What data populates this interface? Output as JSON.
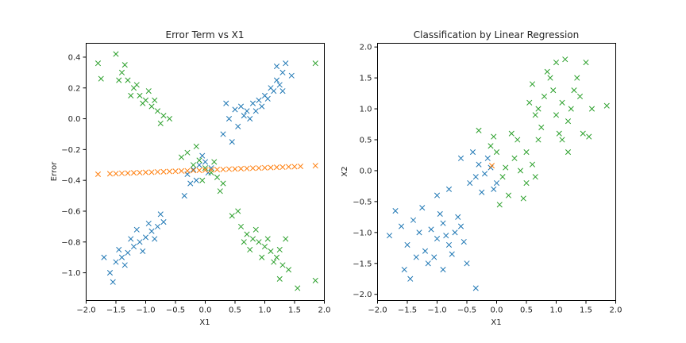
{
  "chart_data": [
    {
      "type": "scatter",
      "title": "Error Term vs X1",
      "xlabel": "X1",
      "ylabel": "Error",
      "xlim": [
        -2.0,
        2.0
      ],
      "ylim": [
        -1.18,
        0.49
      ],
      "xticks": [
        -2.0,
        -1.5,
        -1.0,
        -0.5,
        0.0,
        0.5,
        1.0,
        1.5,
        2.0
      ],
      "xtick_labels": [
        "−2.0",
        "−1.5",
        "−1.0",
        "−0.5",
        "0.0",
        "0.5",
        "1.0",
        "1.5",
        "2.0"
      ],
      "yticks": [
        -1.0,
        -0.8,
        -0.6,
        -0.4,
        -0.2,
        0.0,
        0.2,
        0.4
      ],
      "ytick_labels": [
        "−1.0",
        "−0.8",
        "−0.6",
        "−0.4",
        "−0.2",
        "0.0",
        "0.2",
        "0.4"
      ],
      "marker": "x",
      "series": [
        {
          "color": "#1f77b4",
          "points": [
            [
              -1.6,
              -1.0
            ],
            [
              -1.5,
              -0.93
            ],
            [
              -1.4,
              -0.9
            ],
            [
              -1.3,
              -0.87
            ],
            [
              -1.2,
              -0.83
            ],
            [
              -1.1,
              -0.8
            ],
            [
              -1.0,
              -0.77
            ],
            [
              -0.9,
              -0.73
            ],
            [
              -0.8,
              -0.7
            ],
            [
              -0.7,
              -0.67
            ],
            [
              -1.45,
              -0.85
            ],
            [
              -1.35,
              -0.95
            ],
            [
              -1.25,
              -0.78
            ],
            [
              -1.15,
              -0.72
            ],
            [
              -1.05,
              -0.86
            ],
            [
              -0.95,
              -0.68
            ],
            [
              -0.85,
              -0.78
            ],
            [
              -0.75,
              -0.62
            ],
            [
              -1.55,
              -1.06
            ],
            [
              -1.7,
              -0.9
            ],
            [
              -0.3,
              -0.36
            ],
            [
              -0.2,
              -0.33
            ],
            [
              -0.1,
              -0.3
            ],
            [
              0.0,
              -0.28
            ],
            [
              -0.15,
              -0.4
            ],
            [
              -0.25,
              -0.42
            ],
            [
              0.05,
              -0.35
            ],
            [
              -0.05,
              -0.24
            ],
            [
              -0.35,
              -0.5
            ],
            [
              0.1,
              -0.32
            ],
            [
              0.3,
              -0.1
            ],
            [
              0.4,
              0.0
            ],
            [
              0.5,
              0.06
            ],
            [
              0.6,
              0.08
            ],
            [
              0.7,
              0.05
            ],
            [
              0.8,
              0.1
            ],
            [
              0.9,
              0.12
            ],
            [
              1.0,
              0.15
            ],
            [
              1.1,
              0.2
            ],
            [
              1.2,
              0.25
            ],
            [
              1.3,
              0.3
            ],
            [
              0.55,
              -0.05
            ],
            [
              0.65,
              0.02
            ],
            [
              0.75,
              0.0
            ],
            [
              0.85,
              0.05
            ],
            [
              0.95,
              0.08
            ],
            [
              1.05,
              0.13
            ],
            [
              1.15,
              0.18
            ],
            [
              1.25,
              0.22
            ],
            [
              1.35,
              0.36
            ],
            [
              1.45,
              0.28
            ],
            [
              0.45,
              -0.15
            ],
            [
              0.35,
              0.1
            ],
            [
              1.3,
              0.18
            ],
            [
              1.2,
              0.34
            ]
          ]
        },
        {
          "color": "#2ca02c",
          "points": [
            [
              -1.5,
              0.42
            ],
            [
              -1.4,
              0.3
            ],
            [
              -1.3,
              0.25
            ],
            [
              -1.2,
              0.2
            ],
            [
              -1.1,
              0.15
            ],
            [
              -1.0,
              0.12
            ],
            [
              -0.9,
              0.08
            ],
            [
              -0.8,
              0.05
            ],
            [
              -0.7,
              0.02
            ],
            [
              -0.6,
              0.0
            ],
            [
              -1.45,
              0.25
            ],
            [
              -1.35,
              0.35
            ],
            [
              -1.25,
              0.15
            ],
            [
              -1.15,
              0.22
            ],
            [
              -1.05,
              0.1
            ],
            [
              -0.95,
              0.18
            ],
            [
              -0.85,
              0.12
            ],
            [
              -0.75,
              -0.03
            ],
            [
              -1.75,
              0.26
            ],
            [
              -1.8,
              0.36
            ],
            [
              -0.4,
              -0.25
            ],
            [
              -0.3,
              -0.22
            ],
            [
              -0.2,
              -0.3
            ],
            [
              -0.1,
              -0.27
            ],
            [
              0.0,
              -0.32
            ],
            [
              0.1,
              -0.35
            ],
            [
              0.2,
              -0.38
            ],
            [
              0.3,
              -0.42
            ],
            [
              -0.15,
              -0.18
            ],
            [
              -0.05,
              -0.4
            ],
            [
              0.15,
              -0.28
            ],
            [
              0.25,
              -0.47
            ],
            [
              0.6,
              -0.7
            ],
            [
              0.7,
              -0.75
            ],
            [
              0.8,
              -0.78
            ],
            [
              0.9,
              -0.8
            ],
            [
              1.0,
              -0.83
            ],
            [
              1.1,
              -0.86
            ],
            [
              1.2,
              -0.9
            ],
            [
              1.3,
              -0.95
            ],
            [
              0.65,
              -0.8
            ],
            [
              0.75,
              -0.85
            ],
            [
              0.85,
              -0.72
            ],
            [
              0.95,
              -0.9
            ],
            [
              1.05,
              -0.78
            ],
            [
              1.15,
              -0.93
            ],
            [
              1.25,
              -0.85
            ],
            [
              1.35,
              -0.78
            ],
            [
              1.25,
              -1.04
            ],
            [
              1.55,
              -1.1
            ],
            [
              1.85,
              -1.05
            ],
            [
              1.85,
              0.36
            ],
            [
              0.45,
              -0.63
            ],
            [
              1.4,
              -0.98
            ],
            [
              0.55,
              -0.6
            ]
          ]
        },
        {
          "color": "#ff7f0e",
          "points": [
            [
              -1.8,
              -0.36
            ],
            [
              -1.6,
              -0.357
            ],
            [
              -1.4,
              -0.354
            ],
            [
              -1.2,
              -0.351
            ],
            [
              -1.0,
              -0.348
            ],
            [
              -0.8,
              -0.345
            ],
            [
              -0.6,
              -0.342
            ],
            [
              -0.4,
              -0.339
            ],
            [
              -0.2,
              -0.336
            ],
            [
              0.0,
              -0.333
            ],
            [
              0.2,
              -0.33
            ],
            [
              0.4,
              -0.327
            ],
            [
              0.6,
              -0.324
            ],
            [
              0.8,
              -0.321
            ],
            [
              1.0,
              -0.318
            ],
            [
              1.2,
              -0.315
            ],
            [
              1.4,
              -0.312
            ],
            [
              1.6,
              -0.309
            ],
            [
              1.85,
              -0.305
            ],
            [
              -1.5,
              -0.356
            ],
            [
              -1.3,
              -0.353
            ],
            [
              -1.1,
              -0.35
            ],
            [
              -0.9,
              -0.347
            ],
            [
              -0.7,
              -0.344
            ],
            [
              -0.5,
              -0.341
            ],
            [
              -0.3,
              -0.338
            ],
            [
              -0.1,
              -0.335
            ],
            [
              0.1,
              -0.332
            ],
            [
              0.3,
              -0.329
            ],
            [
              0.5,
              -0.326
            ],
            [
              0.7,
              -0.323
            ],
            [
              0.9,
              -0.32
            ],
            [
              1.1,
              -0.317
            ],
            [
              1.3,
              -0.314
            ],
            [
              1.5,
              -0.311
            ]
          ]
        }
      ]
    },
    {
      "type": "scatter",
      "title": "Classification by Linear Regression",
      "xlabel": "X1",
      "ylabel": "X2",
      "xlim": [
        -2.0,
        2.0
      ],
      "ylim": [
        -2.1,
        2.06
      ],
      "xticks": [
        -2.0,
        -1.5,
        -1.0,
        -0.5,
        0.0,
        0.5,
        1.0,
        1.5,
        2.0
      ],
      "xtick_labels": [
        "−2.0",
        "−1.5",
        "−1.0",
        "−0.5",
        "0.0",
        "0.5",
        "1.0",
        "1.5",
        "2.0"
      ],
      "yticks": [
        -2.0,
        -1.5,
        -1.0,
        -0.5,
        0.0,
        0.5,
        1.0,
        1.5,
        2.0
      ],
      "ytick_labels": [
        "−2.0",
        "−1.5",
        "−1.0",
        "−0.5",
        "0.0",
        "0.5",
        "1.0",
        "1.5",
        "2.0"
      ],
      "marker": "x",
      "series": [
        {
          "color": "#1f77b4",
          "points": [
            [
              -1.8,
              -1.05
            ],
            [
              -1.6,
              -0.9
            ],
            [
              -1.5,
              -1.2
            ],
            [
              -1.4,
              -0.8
            ],
            [
              -1.3,
              -1.0
            ],
            [
              -1.2,
              -1.3
            ],
            [
              -1.1,
              -0.95
            ],
            [
              -1.0,
              -1.1
            ],
            [
              -0.9,
              -0.85
            ],
            [
              -0.8,
              -1.2
            ],
            [
              -0.7,
              -1.0
            ],
            [
              -0.6,
              -0.9
            ],
            [
              -1.55,
              -1.6
            ],
            [
              -1.45,
              -1.75
            ],
            [
              -1.35,
              -1.4
            ],
            [
              -1.25,
              -0.6
            ],
            [
              -1.15,
              -1.5
            ],
            [
              -1.05,
              -1.4
            ],
            [
              -0.95,
              -0.7
            ],
            [
              -0.85,
              -1.05
            ],
            [
              -0.75,
              -1.35
            ],
            [
              -0.65,
              -0.75
            ],
            [
              -0.55,
              -1.15
            ],
            [
              -0.5,
              -1.5
            ],
            [
              -1.7,
              -0.65
            ],
            [
              -0.45,
              -0.2
            ],
            [
              -0.35,
              -0.1
            ],
            [
              -0.3,
              0.1
            ],
            [
              -0.2,
              -0.05
            ],
            [
              -0.1,
              0.05
            ],
            [
              0.0,
              -0.2
            ],
            [
              -0.4,
              0.3
            ],
            [
              -0.25,
              -0.35
            ],
            [
              -0.15,
              0.2
            ],
            [
              -0.05,
              -0.3
            ],
            [
              -0.6,
              0.2
            ],
            [
              -0.35,
              -1.9
            ],
            [
              -0.9,
              -1.6
            ],
            [
              -1.0,
              -0.4
            ],
            [
              -0.8,
              -0.3
            ]
          ]
        },
        {
          "color": "#2ca02c",
          "points": [
            [
              0.7,
              1.0
            ],
            [
              0.8,
              1.2
            ],
            [
              0.9,
              1.5
            ],
            [
              1.0,
              0.9
            ],
            [
              1.1,
              1.1
            ],
            [
              1.2,
              0.8
            ],
            [
              1.3,
              1.3
            ],
            [
              0.6,
              1.4
            ],
            [
              0.75,
              0.7
            ],
            [
              0.85,
              1.6
            ],
            [
              0.95,
              1.3
            ],
            [
              1.05,
              0.6
            ],
            [
              1.15,
              1.8
            ],
            [
              1.25,
              1.0
            ],
            [
              1.35,
              1.5
            ],
            [
              1.45,
              0.6
            ],
            [
              1.55,
              0.55
            ],
            [
              1.6,
              1.0
            ],
            [
              1.85,
              1.05
            ],
            [
              0.55,
              1.1
            ],
            [
              0.65,
              0.9
            ],
            [
              1.0,
              1.75
            ],
            [
              1.4,
              1.2
            ],
            [
              1.2,
              0.3
            ],
            [
              0.3,
              0.2
            ],
            [
              0.4,
              0.0
            ],
            [
              0.5,
              -0.2
            ],
            [
              0.6,
              0.1
            ],
            [
              0.2,
              -0.4
            ],
            [
              0.1,
              -0.1
            ],
            [
              0.0,
              0.3
            ],
            [
              -0.1,
              0.4
            ],
            [
              0.25,
              0.6
            ],
            [
              0.45,
              -0.45
            ],
            [
              0.35,
              0.5
            ],
            [
              0.15,
              0.05
            ],
            [
              0.05,
              -0.55
            ],
            [
              -0.05,
              0.55
            ],
            [
              0.5,
              0.3
            ],
            [
              0.7,
              0.5
            ],
            [
              -0.3,
              0.65
            ],
            [
              0.65,
              -0.1
            ],
            [
              1.1,
              0.5
            ],
            [
              1.5,
              1.75
            ]
          ]
        },
        {
          "color": "#ff7f0e",
          "points": [
            [
              -0.08,
              0.08
            ]
          ]
        }
      ]
    }
  ]
}
